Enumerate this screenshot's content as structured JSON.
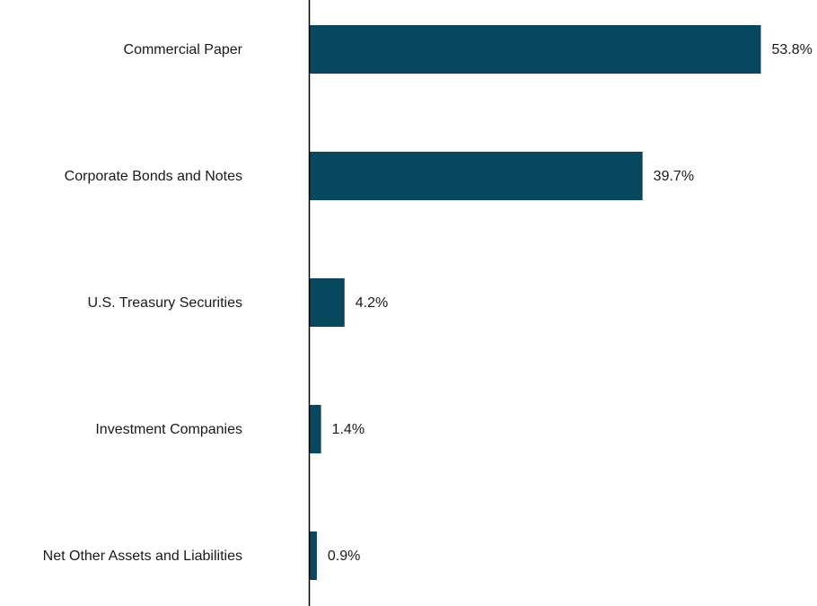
{
  "chart_data": {
    "type": "bar",
    "orientation": "horizontal",
    "categories": [
      "Commercial Paper",
      "Corporate Bonds and Notes",
      "U.S. Treasury Securities",
      "Investment Companies",
      "Net Other Assets and Liabilities"
    ],
    "values": [
      53.8,
      39.7,
      4.2,
      1.4,
      0.9
    ],
    "value_labels": [
      "53.8%",
      "39.7%",
      "4.2%",
      "1.4%",
      "0.9%"
    ],
    "bar_color": "#08485e",
    "xlim": [
      0,
      60
    ],
    "grid": false,
    "legend": "none"
  }
}
